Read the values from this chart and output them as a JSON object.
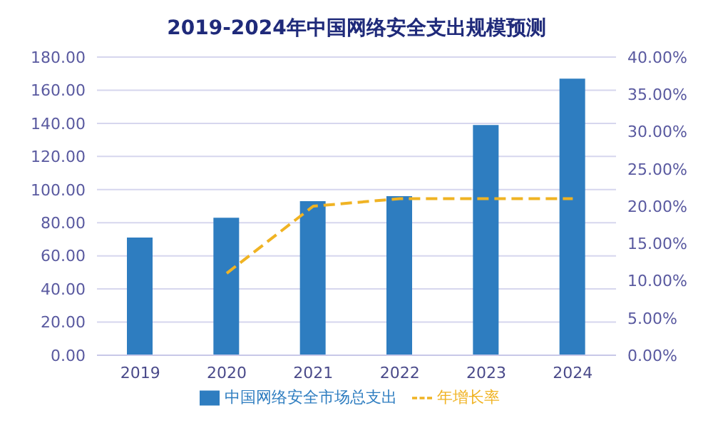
{
  "chart_data": {
    "type": "bar",
    "title": "2019-2024年中国网络安全支出规模预测",
    "categories": [
      "2019",
      "2020",
      "2021",
      "2022",
      "2023",
      "2024"
    ],
    "series": [
      {
        "name": "中国网络安全市场总支出",
        "color": "#2e7dc0",
        "values": [
          71,
          83,
          93,
          96,
          139,
          167
        ]
      },
      {
        "name": "年增长率",
        "type": "line",
        "axis": "y2",
        "color": "#f0b323",
        "line_style": "dashed",
        "values": [
          null,
          11,
          20,
          21,
          21,
          21
        ]
      }
    ],
    "ylim": [
      0,
      180
    ],
    "yticks": [
      {
        "value": 0,
        "label": "0.00"
      },
      {
        "value": 20,
        "label": "20.00"
      },
      {
        "value": 40,
        "label": "40.00"
      },
      {
        "value": 60,
        "label": "60.00"
      },
      {
        "value": 80,
        "label": "80.00"
      },
      {
        "value": 100,
        "label": "100.00"
      },
      {
        "value": 120,
        "label": "120.00"
      },
      {
        "value": 140,
        "label": "140.00"
      },
      {
        "value": 160,
        "label": "160.00"
      },
      {
        "value": 180,
        "label": "180.00"
      }
    ],
    "y2lim": [
      0,
      40
    ],
    "y2ticks": [
      {
        "value": 0,
        "label": "0.00%"
      },
      {
        "value": 5,
        "label": "5.00%"
      },
      {
        "value": 10,
        "label": "10.00%"
      },
      {
        "value": 15,
        "label": "15.00%"
      },
      {
        "value": 20,
        "label": "20.00%"
      },
      {
        "value": 25,
        "label": "25.00%"
      },
      {
        "value": 30,
        "label": "30.00%"
      },
      {
        "value": 35,
        "label": "35.00%"
      },
      {
        "value": 40,
        "label": "40.00%"
      }
    ],
    "grid": "y",
    "legend": "bottom",
    "marker": "none"
  }
}
